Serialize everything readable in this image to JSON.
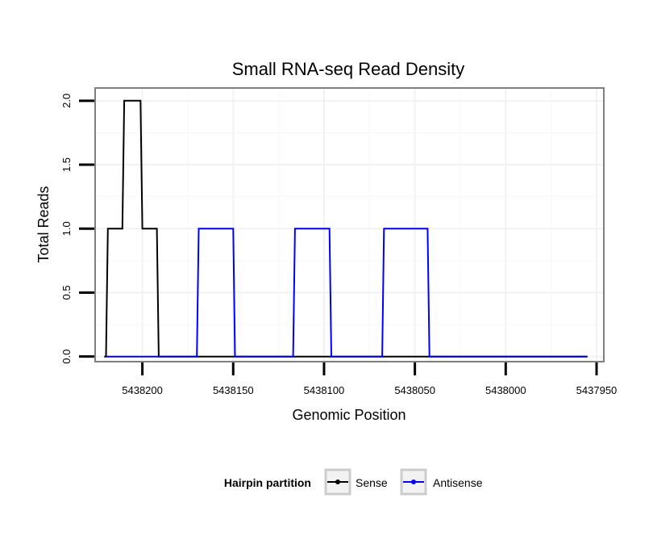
{
  "chart_data": {
    "type": "line",
    "title": "Small RNA-seq Read Density",
    "xlabel": "Genomic Position",
    "ylabel": "Total Reads",
    "xlim": [
      5438226,
      5437946
    ],
    "x_reversed": true,
    "ylim": [
      -0.04,
      2.1
    ],
    "xticks": [
      5438200,
      5438150,
      5438100,
      5438050,
      5438000,
      5437950
    ],
    "xtick_labels": [
      "5438200",
      "5438150",
      "5438100",
      "5438050",
      "5438000",
      "5437950"
    ],
    "yticks": [
      0,
      0.5,
      1,
      1.5,
      2
    ],
    "ytick_labels": [
      "0.0",
      "0.5",
      "1.0",
      "1.5",
      "2.0"
    ],
    "legend": {
      "title": "Hairpin partition",
      "position": "bottom",
      "entries": [
        {
          "label": "Sense",
          "color": "#000000"
        },
        {
          "label": "Antisense",
          "color": "#0000ff"
        }
      ]
    },
    "series": [
      {
        "name": "Sense",
        "color": "#000000",
        "x": [
          5438221,
          5438220,
          5438219,
          5438211,
          5438210,
          5438201,
          5438200,
          5438192,
          5438191,
          5438180,
          5437955
        ],
        "y": [
          0,
          0,
          1,
          1,
          2,
          2,
          1,
          1,
          0,
          0,
          0
        ]
      },
      {
        "name": "Antisense",
        "color": "#0000ff",
        "x": [
          5438220,
          5438170,
          5438169,
          5438150,
          5438149,
          5438117,
          5438116,
          5438097,
          5438096,
          5438068,
          5438067,
          5438043,
          5438042,
          5437955
        ],
        "y": [
          0,
          0,
          1,
          1,
          0,
          0,
          1,
          1,
          0,
          0,
          1,
          1,
          0,
          0
        ]
      }
    ]
  }
}
